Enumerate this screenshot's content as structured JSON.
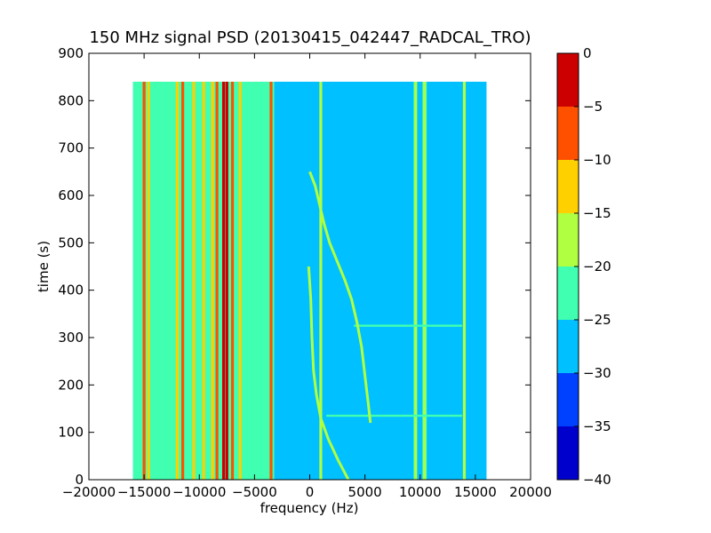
{
  "chart_data": {
    "type": "heatmap",
    "title": "150 MHz signal PSD (20130415_042447_RADCAL_TRO)",
    "xlabel": "frequency (Hz)",
    "ylabel": "time (s)",
    "xlim": [
      -20000,
      20000
    ],
    "ylim": [
      0,
      900
    ],
    "x_ticks": [
      -20000,
      -15000,
      -10000,
      -5000,
      0,
      5000,
      10000,
      15000,
      20000
    ],
    "y_ticks": [
      0,
      100,
      200,
      300,
      400,
      500,
      600,
      700,
      800,
      900
    ],
    "data_extent": {
      "x": [
        -16000,
        16000
      ],
      "y": [
        0,
        840
      ]
    },
    "background_level": -28,
    "grid": false,
    "colorbar": {
      "levels": [
        -40,
        -35,
        -30,
        -25,
        -20,
        -15,
        -10,
        -5,
        0
      ],
      "colors": [
        "#0000cd",
        "#0040ff",
        "#00c0ff",
        "#40ffb0",
        "#b0ff40",
        "#ffd000",
        "#ff5000",
        "#cc0000"
      ],
      "tick_labels": [
        "0",
        "−5",
        "−10",
        "−15",
        "−20",
        "−25",
        "−30",
        "−35",
        "−40"
      ]
    },
    "vertical_bands": [
      {
        "f_start": -16000,
        "f_end": -3200,
        "level": -22
      },
      {
        "f_start": -3200,
        "f_end": 900,
        "level": -26
      },
      {
        "f_start": 13800,
        "f_end": 16000,
        "level": -26
      },
      {
        "f_start": 9400,
        "f_end": 9700,
        "level": -22
      },
      {
        "f_start": 10200,
        "f_end": 10600,
        "level": -22
      }
    ],
    "vertical_lines": [
      {
        "f": -15000,
        "level": -8
      },
      {
        "f": -14600,
        "level": -12
      },
      {
        "f": -12000,
        "level": -12
      },
      {
        "f": -11500,
        "level": -8
      },
      {
        "f": -10500,
        "level": -12
      },
      {
        "f": -9600,
        "level": -12
      },
      {
        "f": -8800,
        "level": -12
      },
      {
        "f": -8400,
        "level": -8
      },
      {
        "f": -7800,
        "level": -3
      },
      {
        "f": -7500,
        "level": -3
      },
      {
        "f": -7000,
        "level": -8
      },
      {
        "f": -6300,
        "level": -12
      },
      {
        "f": -3500,
        "level": -8
      },
      {
        "f": 1000,
        "level": -17
      },
      {
        "f": 9600,
        "level": -17
      },
      {
        "f": 10400,
        "level": -17
      },
      {
        "f": 14000,
        "level": -17
      }
    ],
    "horizontal_lines": [
      {
        "t": 135,
        "f_start": 1500,
        "f_end": 13800,
        "level": -22
      },
      {
        "t": 325,
        "f_start": 4000,
        "f_end": 13800,
        "level": -22
      }
    ],
    "tracks": [
      {
        "name": "",
        "level": -17,
        "points": [
          [
            3500,
            0
          ],
          [
            2600,
            40
          ],
          [
            1700,
            85
          ],
          [
            1000,
            130
          ],
          [
            600,
            180
          ],
          [
            350,
            230
          ],
          [
            200,
            300
          ],
          [
            100,
            380
          ],
          [
            -100,
            450
          ]
        ]
      },
      {
        "name": "",
        "level": -17,
        "points": [
          [
            5500,
            120
          ],
          [
            5300,
            160
          ],
          [
            5000,
            220
          ],
          [
            4700,
            280
          ],
          [
            4300,
            330
          ],
          [
            3800,
            380
          ],
          [
            3200,
            420
          ],
          [
            2500,
            460
          ],
          [
            1800,
            500
          ],
          [
            1300,
            540
          ],
          [
            900,
            580
          ],
          [
            500,
            620
          ],
          [
            0,
            650
          ]
        ]
      }
    ]
  }
}
